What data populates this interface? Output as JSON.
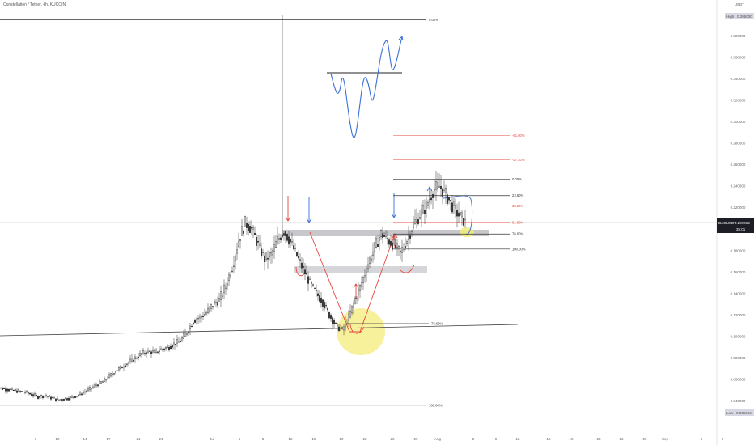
{
  "header": {
    "title": "Constellation / Tether, 4h, KUCOIN",
    "currency": "USDT"
  },
  "colors": {
    "candle": "#333333",
    "fib_gray": "#333333",
    "fib_red": "#e8453c",
    "zone": "#c8c8cc",
    "arrow_red": "#e8453c",
    "arrow_blue": "#3a6fd8",
    "highlight": "#f5ec7a",
    "trend": "#444444"
  },
  "chart_data": {
    "type": "candlestick",
    "x_ticks": [
      "7",
      "10",
      "14",
      "17",
      "21",
      "24",
      "Jul",
      "5",
      "8",
      "12",
      "15",
      "19",
      "22",
      "26",
      "29",
      "Aug",
      "5",
      "9",
      "12",
      "16",
      "19",
      "23",
      "26",
      "29",
      "Sep",
      "6",
      "9"
    ],
    "y_ticks": [
      "0.380000",
      "0.360000",
      "0.340000",
      "0.320000",
      "0.300000",
      "0.280000",
      "0.260000",
      "0.240000",
      "0.220000",
      "0.200000",
      "0.180000",
      "0.160000",
      "0.140000",
      "0.120000",
      "0.100000",
      "0.080000",
      "0.060000",
      "0.040000"
    ],
    "ylim": [
      0.02,
      0.4
    ],
    "high_label": "High",
    "high_value": "0.395000",
    "low_label": "Low",
    "low_value": "0.035966",
    "current_symbol": "DAGUSDT",
    "current_price": "0.207013",
    "countdown": "35:01",
    "closes": [
      0.052,
      0.051,
      0.05,
      0.049,
      0.048,
      0.046,
      0.044,
      0.045,
      0.043,
      0.041,
      0.042,
      0.043,
      0.045,
      0.048,
      0.051,
      0.055,
      0.058,
      0.063,
      0.068,
      0.072,
      0.076,
      0.08,
      0.084,
      0.086,
      0.085,
      0.088,
      0.09,
      0.093,
      0.096,
      0.104,
      0.115,
      0.118,
      0.122,
      0.13,
      0.134,
      0.148,
      0.165,
      0.19,
      0.206,
      0.2,
      0.185,
      0.172,
      0.176,
      0.19,
      0.198,
      0.188,
      0.175,
      0.162,
      0.15,
      0.14,
      0.132,
      0.12,
      0.11,
      0.106,
      0.118,
      0.135,
      0.15,
      0.168,
      0.183,
      0.196,
      0.19,
      0.185,
      0.178,
      0.19,
      0.205,
      0.213,
      0.222,
      0.236,
      0.24,
      0.232,
      0.222,
      0.213,
      0.207
    ],
    "fib_levels": [
      {
        "label": "0.00%",
        "value": 0.395
      },
      {
        "label": "100.00%",
        "value": 0.036
      },
      {
        "label": "78.60%",
        "value": 0.112
      },
      {
        "label": "-61.80%",
        "value": 0.2874
      },
      {
        "label": "-27.20%",
        "value": 0.2646
      },
      {
        "label": "0.00%",
        "value": 0.2466
      },
      {
        "label": "23.60%",
        "value": 0.2313
      },
      {
        "label": "38.20%",
        "value": 0.2218
      },
      {
        "label": "61.80%",
        "value": 0.2064
      },
      {
        "label": "78.60%",
        "value": 0.1955
      },
      {
        "label": "100.00%",
        "value": 0.1815
      }
    ]
  }
}
